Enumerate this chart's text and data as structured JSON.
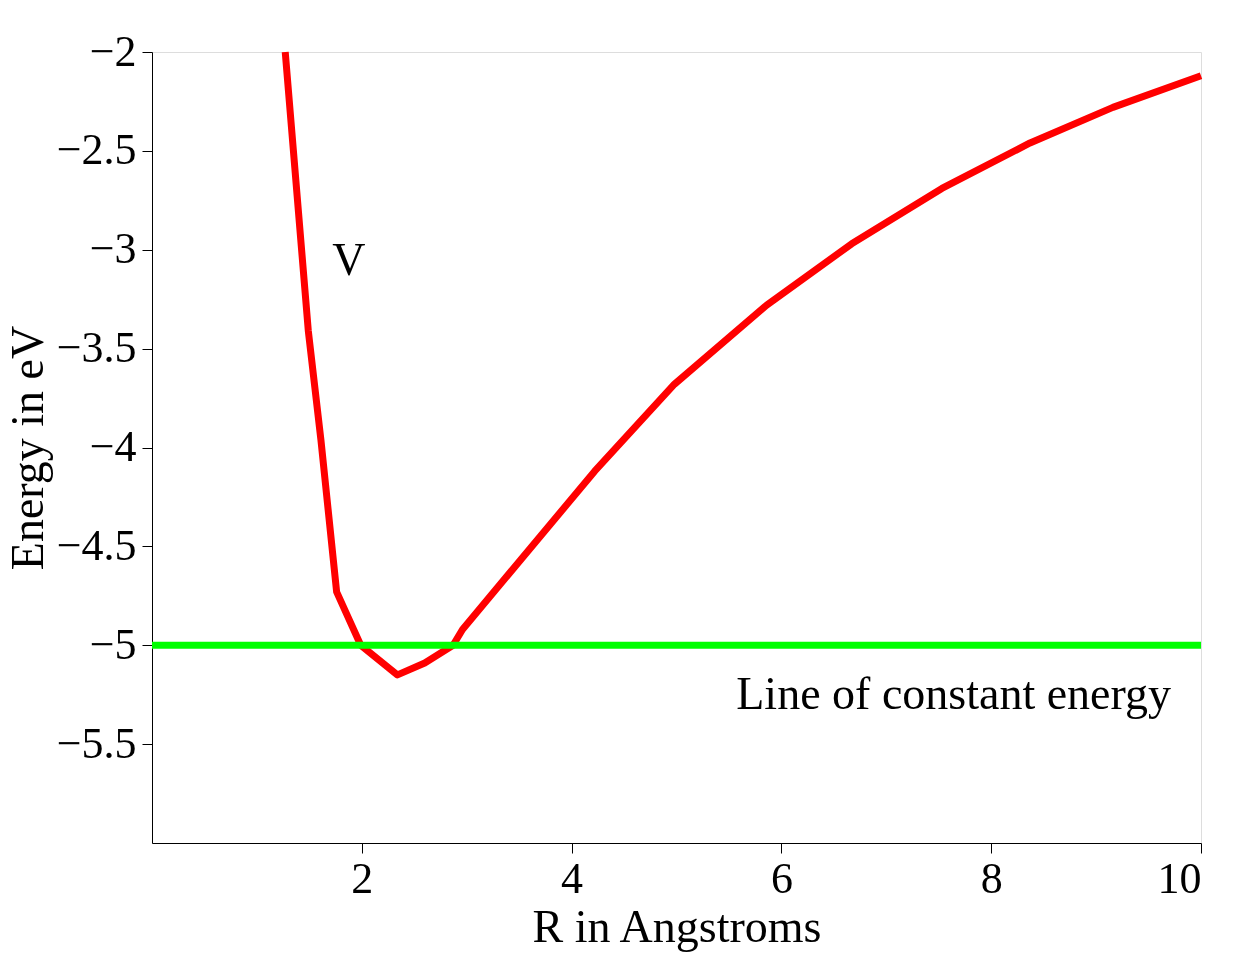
{
  "chart_data": {
    "type": "line",
    "xlabel": "R in Angstroms",
    "ylabel": "Energy in eV",
    "series": [
      {
        "name": "V",
        "color": "#ff0000",
        "x": [
          1.27,
          1.49,
          1.61,
          1.76,
          1.99,
          2.34,
          2.6,
          2.87,
          2.96,
          4.22,
          4.98,
          5.86,
          6.67,
          7.53,
          8.37,
          9.16,
          10
        ],
        "values": [
          -2,
          -3.41,
          -3.96,
          -4.73,
          -5.0,
          -5.15,
          -5.09,
          -5.0,
          -4.92,
          -4.12,
          -3.68,
          -3.28,
          -2.97,
          -2.69,
          -2.46,
          -2.28,
          -2.12
        ]
      }
    ],
    "ref_lines": [
      {
        "axis": "y",
        "value": -5,
        "label": "Line of constant energy",
        "color": "#00ff00"
      }
    ],
    "xlim": [
      0,
      10
    ],
    "xticks": [
      2,
      4,
      6,
      8,
      10
    ],
    "ylim": [
      -6,
      -2
    ],
    "yticks": [
      -2,
      -2.5,
      -3,
      -3.5,
      -4,
      -4.5,
      -5,
      -5.5
    ],
    "grid": false,
    "marker": "none",
    "line_style": "solid"
  }
}
